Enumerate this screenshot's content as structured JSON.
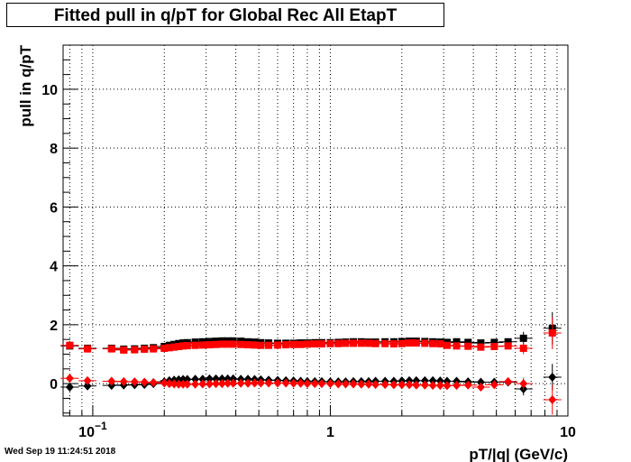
{
  "chart_data": {
    "type": "scatter",
    "title": "Fitted pull in q/pT for Global Rec All EtapT",
    "xlabel": "pT/|q| (GeV/c)",
    "ylabel": "pull in q/pT",
    "xscale": "log",
    "xlim": [
      0.075,
      10.0
    ],
    "ylim": [
      -1.1,
      11.5
    ],
    "x_ticks": [
      {
        "value": 0.1,
        "base": "10",
        "exp": "−1"
      },
      {
        "value": 1,
        "base": "1",
        "exp": ""
      },
      {
        "value": 10,
        "base": "10",
        "exp": ""
      }
    ],
    "y_ticks": [
      {
        "value": 0,
        "label": "0"
      },
      {
        "value": 2,
        "label": "2"
      },
      {
        "value": 4,
        "label": "4"
      },
      {
        "value": 6,
        "label": "6"
      },
      {
        "value": 8,
        "label": "8"
      },
      {
        "value": 10,
        "label": "10"
      }
    ],
    "grid": true,
    "series": [
      {
        "marker": "square",
        "color": "#000000",
        "x": [
          0.08,
          0.095,
          0.12,
          0.135,
          0.15,
          0.165,
          0.18,
          0.2,
          0.21,
          0.22,
          0.23,
          0.24,
          0.25,
          0.27,
          0.29,
          0.31,
          0.33,
          0.35,
          0.37,
          0.39,
          0.42,
          0.45,
          0.48,
          0.51,
          0.55,
          0.6,
          0.65,
          0.7,
          0.75,
          0.8,
          0.86,
          0.92,
          1.0,
          1.08,
          1.16,
          1.25,
          1.35,
          1.45,
          1.55,
          1.7,
          1.85,
          2.0,
          2.15,
          2.3,
          2.5,
          2.7,
          2.9,
          3.1,
          3.4,
          3.8,
          4.3,
          4.9,
          5.6,
          6.5,
          8.6
        ],
        "y": [
          1.28,
          1.2,
          1.2,
          1.17,
          1.18,
          1.2,
          1.22,
          1.26,
          1.3,
          1.33,
          1.36,
          1.38,
          1.39,
          1.41,
          1.42,
          1.43,
          1.44,
          1.45,
          1.45,
          1.45,
          1.44,
          1.42,
          1.41,
          1.39,
          1.38,
          1.37,
          1.37,
          1.37,
          1.38,
          1.38,
          1.39,
          1.39,
          1.39,
          1.4,
          1.41,
          1.42,
          1.42,
          1.41,
          1.41,
          1.42,
          1.42,
          1.43,
          1.44,
          1.44,
          1.43,
          1.42,
          1.41,
          1.4,
          1.42,
          1.4,
          1.38,
          1.4,
          1.42,
          1.54,
          1.88
        ],
        "yerr": [
          0.08,
          0.03,
          0.03,
          0.03,
          0.03,
          0.03,
          0.03,
          0.03,
          0.03,
          0.03,
          0.03,
          0.03,
          0.03,
          0.03,
          0.03,
          0.03,
          0.03,
          0.03,
          0.03,
          0.03,
          0.03,
          0.03,
          0.03,
          0.03,
          0.03,
          0.03,
          0.03,
          0.03,
          0.03,
          0.03,
          0.03,
          0.03,
          0.03,
          0.03,
          0.03,
          0.03,
          0.03,
          0.03,
          0.03,
          0.03,
          0.03,
          0.03,
          0.03,
          0.03,
          0.03,
          0.03,
          0.03,
          0.04,
          0.05,
          0.05,
          0.06,
          0.08,
          0.1,
          0.22,
          0.55
        ]
      },
      {
        "marker": "square",
        "color": "#ff0000",
        "x": [
          0.08,
          0.095,
          0.12,
          0.135,
          0.15,
          0.165,
          0.18,
          0.2,
          0.21,
          0.22,
          0.23,
          0.24,
          0.25,
          0.27,
          0.29,
          0.31,
          0.33,
          0.35,
          0.37,
          0.39,
          0.42,
          0.45,
          0.48,
          0.51,
          0.55,
          0.6,
          0.65,
          0.7,
          0.75,
          0.8,
          0.86,
          0.92,
          1.0,
          1.08,
          1.16,
          1.25,
          1.35,
          1.45,
          1.55,
          1.7,
          1.85,
          2.0,
          2.15,
          2.3,
          2.5,
          2.7,
          2.9,
          3.1,
          3.4,
          3.8,
          4.3,
          4.9,
          5.6,
          6.5,
          8.6
        ],
        "y": [
          1.3,
          1.18,
          1.18,
          1.14,
          1.15,
          1.17,
          1.18,
          1.2,
          1.22,
          1.24,
          1.26,
          1.28,
          1.29,
          1.3,
          1.31,
          1.32,
          1.33,
          1.34,
          1.34,
          1.34,
          1.33,
          1.32,
          1.31,
          1.3,
          1.3,
          1.31,
          1.32,
          1.33,
          1.33,
          1.34,
          1.35,
          1.35,
          1.36,
          1.36,
          1.37,
          1.37,
          1.37,
          1.37,
          1.36,
          1.36,
          1.35,
          1.36,
          1.38,
          1.38,
          1.37,
          1.36,
          1.35,
          1.3,
          1.28,
          1.27,
          1.24,
          1.26,
          1.28,
          1.2,
          1.72
        ],
        "yerr": [
          0.1,
          0.04,
          0.04,
          0.04,
          0.04,
          0.04,
          0.04,
          0.03,
          0.03,
          0.03,
          0.03,
          0.03,
          0.03,
          0.03,
          0.03,
          0.03,
          0.03,
          0.03,
          0.03,
          0.03,
          0.03,
          0.03,
          0.03,
          0.03,
          0.03,
          0.03,
          0.03,
          0.03,
          0.03,
          0.03,
          0.03,
          0.03,
          0.03,
          0.03,
          0.03,
          0.03,
          0.03,
          0.03,
          0.03,
          0.03,
          0.03,
          0.03,
          0.03,
          0.03,
          0.03,
          0.03,
          0.03,
          0.04,
          0.05,
          0.05,
          0.06,
          0.08,
          0.1,
          0.2,
          0.55
        ]
      },
      {
        "marker": "diamond",
        "color": "#000000",
        "x": [
          0.08,
          0.095,
          0.12,
          0.135,
          0.15,
          0.165,
          0.18,
          0.2,
          0.21,
          0.22,
          0.23,
          0.24,
          0.25,
          0.27,
          0.29,
          0.31,
          0.33,
          0.35,
          0.37,
          0.39,
          0.42,
          0.45,
          0.48,
          0.51,
          0.55,
          0.6,
          0.65,
          0.7,
          0.75,
          0.8,
          0.86,
          0.92,
          1.0,
          1.08,
          1.16,
          1.25,
          1.35,
          1.45,
          1.55,
          1.7,
          1.85,
          2.0,
          2.15,
          2.3,
          2.5,
          2.7,
          2.9,
          3.1,
          3.4,
          3.8,
          4.3,
          4.9,
          5.6,
          6.5,
          8.6
        ],
        "y": [
          -0.12,
          -0.08,
          -0.06,
          -0.05,
          -0.04,
          -0.03,
          0.0,
          0.06,
          0.1,
          0.12,
          0.13,
          0.14,
          0.14,
          0.15,
          0.15,
          0.16,
          0.16,
          0.16,
          0.16,
          0.16,
          0.15,
          0.15,
          0.14,
          0.13,
          0.12,
          0.11,
          0.1,
          0.09,
          0.08,
          0.07,
          0.07,
          0.07,
          0.06,
          0.06,
          0.06,
          0.07,
          0.07,
          0.07,
          0.08,
          0.08,
          0.08,
          0.09,
          0.1,
          0.1,
          0.1,
          0.1,
          0.09,
          0.08,
          0.08,
          0.06,
          0.05,
          0.05,
          0.05,
          -0.18,
          0.22
        ],
        "yerr": [
          0.08,
          0.03,
          0.03,
          0.03,
          0.03,
          0.03,
          0.03,
          0.03,
          0.03,
          0.03,
          0.03,
          0.03,
          0.03,
          0.03,
          0.03,
          0.03,
          0.03,
          0.03,
          0.03,
          0.03,
          0.03,
          0.03,
          0.03,
          0.03,
          0.03,
          0.03,
          0.03,
          0.03,
          0.03,
          0.03,
          0.03,
          0.03,
          0.03,
          0.03,
          0.03,
          0.03,
          0.03,
          0.03,
          0.03,
          0.03,
          0.03,
          0.03,
          0.03,
          0.03,
          0.03,
          0.03,
          0.03,
          0.04,
          0.05,
          0.05,
          0.06,
          0.08,
          0.1,
          0.22,
          0.45
        ]
      },
      {
        "marker": "diamond",
        "color": "#ff0000",
        "x": [
          0.08,
          0.095,
          0.12,
          0.135,
          0.15,
          0.165,
          0.18,
          0.2,
          0.21,
          0.22,
          0.23,
          0.24,
          0.25,
          0.27,
          0.29,
          0.31,
          0.33,
          0.35,
          0.37,
          0.39,
          0.42,
          0.45,
          0.48,
          0.51,
          0.55,
          0.6,
          0.65,
          0.7,
          0.75,
          0.8,
          0.86,
          0.92,
          1.0,
          1.08,
          1.16,
          1.25,
          1.35,
          1.45,
          1.55,
          1.7,
          1.85,
          2.0,
          2.15,
          2.3,
          2.5,
          2.7,
          2.9,
          3.1,
          3.4,
          3.8,
          4.3,
          4.9,
          5.6,
          6.5,
          8.6
        ],
        "y": [
          0.18,
          0.1,
          0.08,
          0.07,
          0.06,
          0.05,
          0.04,
          0.02,
          0.0,
          -0.01,
          -0.02,
          -0.02,
          -0.02,
          -0.02,
          -0.01,
          -0.01,
          0.0,
          0.0,
          0.01,
          0.01,
          0.01,
          0.01,
          0.02,
          0.02,
          0.02,
          0.02,
          0.02,
          0.01,
          0.01,
          0.0,
          0.0,
          0.0,
          0.0,
          -0.01,
          -0.01,
          -0.01,
          -0.02,
          -0.02,
          -0.03,
          -0.03,
          -0.04,
          -0.04,
          -0.04,
          -0.05,
          -0.05,
          -0.06,
          -0.06,
          -0.07,
          -0.06,
          -0.05,
          -0.12,
          -0.04,
          0.07,
          0.0,
          -0.55
        ],
        "yerr": [
          0.1,
          0.04,
          0.04,
          0.04,
          0.04,
          0.04,
          0.04,
          0.03,
          0.03,
          0.03,
          0.03,
          0.03,
          0.03,
          0.03,
          0.03,
          0.03,
          0.03,
          0.03,
          0.03,
          0.03,
          0.03,
          0.03,
          0.03,
          0.03,
          0.03,
          0.03,
          0.03,
          0.03,
          0.03,
          0.03,
          0.03,
          0.03,
          0.03,
          0.03,
          0.03,
          0.03,
          0.03,
          0.03,
          0.03,
          0.03,
          0.03,
          0.03,
          0.03,
          0.03,
          0.03,
          0.03,
          0.03,
          0.04,
          0.05,
          0.05,
          0.06,
          0.08,
          0.1,
          0.2,
          0.5
        ]
      }
    ]
  },
  "footer": {
    "timestamp": "Wed Sep 19 11:24:51 2018"
  }
}
